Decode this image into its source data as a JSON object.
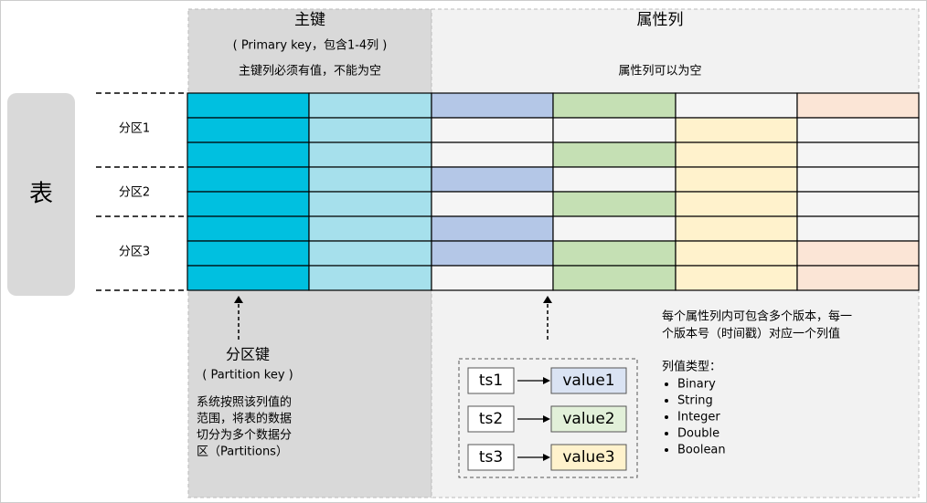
{
  "table_label": "表",
  "primary_key": {
    "title": "主键",
    "subtitle": "( Primary key，包含1-4列 )",
    "note": "主键列必须有值，不能为空"
  },
  "attribute_columns": {
    "title": "属性列",
    "note": "属性列可以为空"
  },
  "partitions": [
    "分区1",
    "分区2",
    "分区3"
  ],
  "partition_key": {
    "title": "分区键",
    "subtitle": "( Partition key )",
    "description": [
      "系统按照该列值的",
      "范围，将表的数据",
      "切分为多个数据分",
      "区（Partitions）"
    ]
  },
  "versions": {
    "description": [
      "每个属性列内可包含多个版本，每一",
      "个版本号（时间戳）对应一个列值"
    ],
    "types_title": "列值类型：",
    "types": [
      "Binary",
      "String",
      "Integer",
      "Double",
      "Boolean"
    ]
  },
  "timestamps": [
    {
      "ts": "ts1",
      "value": "value1"
    },
    {
      "ts": "ts2",
      "value": "value2"
    },
    {
      "ts": "ts3",
      "value": "value3"
    }
  ]
}
